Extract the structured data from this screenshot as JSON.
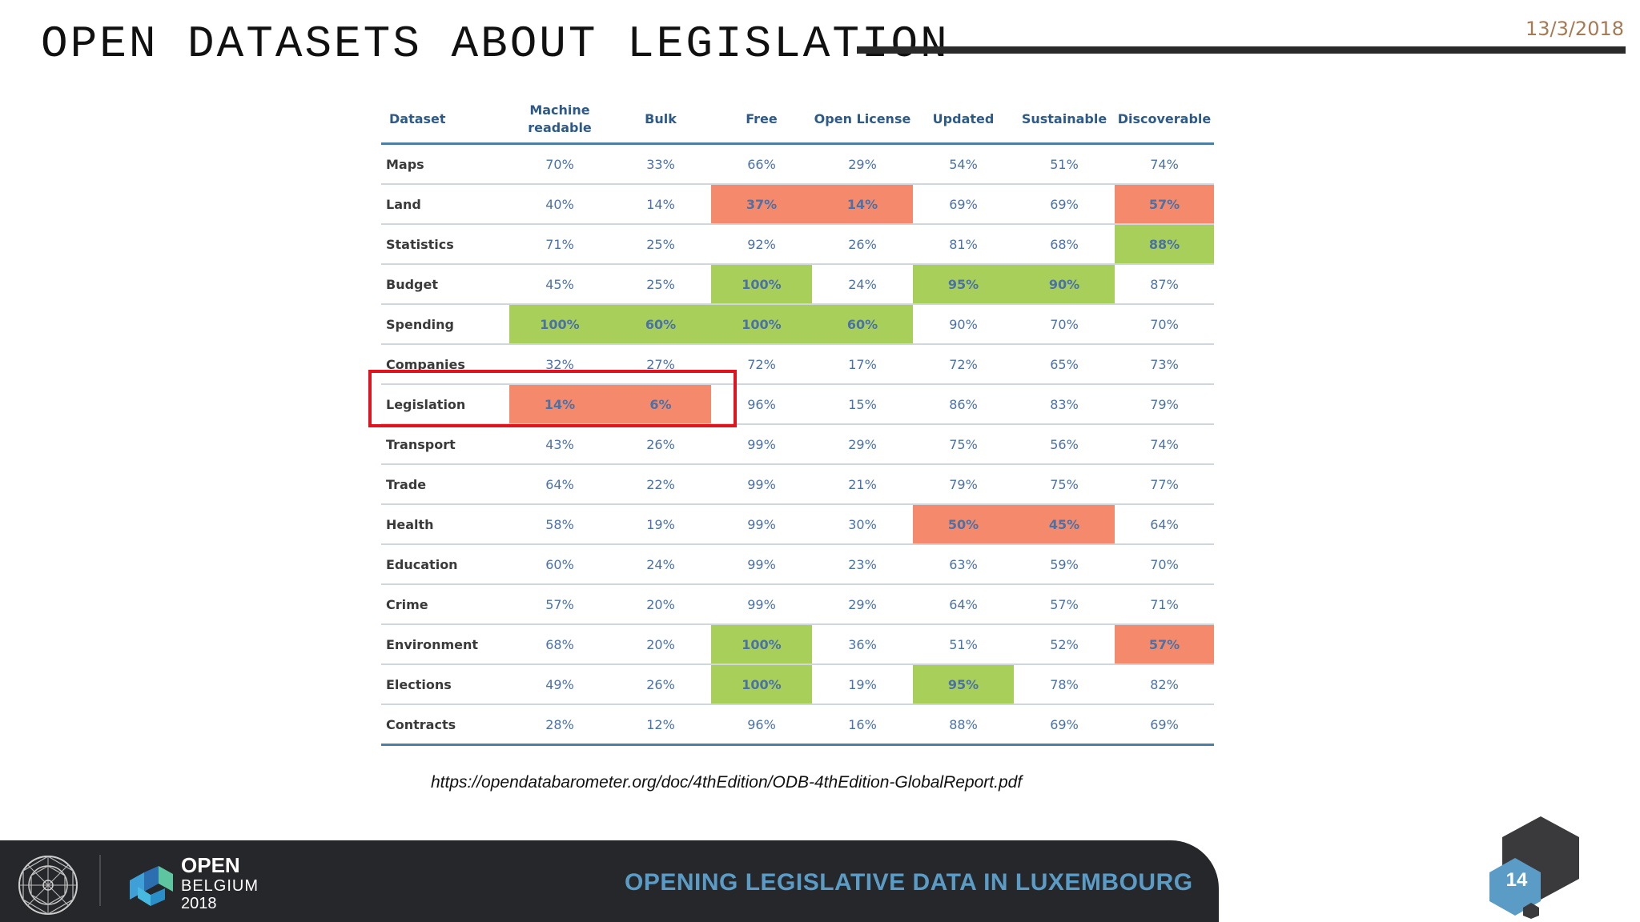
{
  "slide": {
    "title": "OPEN DATASETS ABOUT LEGISLATION",
    "date": "13/3/2018",
    "source_url": "https://opendatabarometer.org/doc/4thEdition/ODB-4thEdition-GlobalReport.pdf",
    "page_number": "14"
  },
  "table": {
    "columns": [
      "Dataset",
      "Machine readable",
      "Bulk",
      "Free",
      "Open License",
      "Updated",
      "Sustainable",
      "Discoverable"
    ],
    "rows": [
      {
        "label": "Maps",
        "cells": [
          {
            "v": "70%"
          },
          {
            "v": "33%"
          },
          {
            "v": "66%"
          },
          {
            "v": "29%"
          },
          {
            "v": "54%"
          },
          {
            "v": "51%"
          },
          {
            "v": "74%"
          }
        ]
      },
      {
        "label": "Land",
        "cells": [
          {
            "v": "40%"
          },
          {
            "v": "14%"
          },
          {
            "v": "37%",
            "h": "red"
          },
          {
            "v": "14%",
            "h": "red"
          },
          {
            "v": "69%"
          },
          {
            "v": "69%"
          },
          {
            "v": "57%",
            "h": "red"
          }
        ]
      },
      {
        "label": "Statistics",
        "cells": [
          {
            "v": "71%"
          },
          {
            "v": "25%"
          },
          {
            "v": "92%"
          },
          {
            "v": "26%"
          },
          {
            "v": "81%"
          },
          {
            "v": "68%"
          },
          {
            "v": "88%",
            "h": "green"
          }
        ]
      },
      {
        "label": "Budget",
        "cells": [
          {
            "v": "45%"
          },
          {
            "v": "25%"
          },
          {
            "v": "100%",
            "h": "green"
          },
          {
            "v": "24%"
          },
          {
            "v": "95%",
            "h": "green"
          },
          {
            "v": "90%",
            "h": "green"
          },
          {
            "v": "87%"
          }
        ]
      },
      {
        "label": "Spending",
        "cells": [
          {
            "v": "100%",
            "h": "green"
          },
          {
            "v": "60%",
            "h": "green"
          },
          {
            "v": "100%",
            "h": "green"
          },
          {
            "v": "60%",
            "h": "green"
          },
          {
            "v": "90%"
          },
          {
            "v": "70%"
          },
          {
            "v": "70%"
          }
        ]
      },
      {
        "label": "Companies",
        "cells": [
          {
            "v": "32%"
          },
          {
            "v": "27%"
          },
          {
            "v": "72%"
          },
          {
            "v": "17%"
          },
          {
            "v": "72%"
          },
          {
            "v": "65%"
          },
          {
            "v": "73%"
          }
        ]
      },
      {
        "label": "Legislation",
        "cells": [
          {
            "v": "14%",
            "h": "red"
          },
          {
            "v": "6%",
            "h": "red"
          },
          {
            "v": "96%"
          },
          {
            "v": "15%"
          },
          {
            "v": "86%"
          },
          {
            "v": "83%"
          },
          {
            "v": "79%"
          }
        ]
      },
      {
        "label": "Transport",
        "cells": [
          {
            "v": "43%"
          },
          {
            "v": "26%"
          },
          {
            "v": "99%"
          },
          {
            "v": "29%"
          },
          {
            "v": "75%"
          },
          {
            "v": "56%"
          },
          {
            "v": "74%"
          }
        ]
      },
      {
        "label": "Trade",
        "cells": [
          {
            "v": "64%"
          },
          {
            "v": "22%"
          },
          {
            "v": "99%"
          },
          {
            "v": "21%"
          },
          {
            "v": "79%"
          },
          {
            "v": "75%"
          },
          {
            "v": "77%"
          }
        ]
      },
      {
        "label": "Health",
        "cells": [
          {
            "v": "58%"
          },
          {
            "v": "19%"
          },
          {
            "v": "99%"
          },
          {
            "v": "30%"
          },
          {
            "v": "50%",
            "h": "red"
          },
          {
            "v": "45%",
            "h": "red"
          },
          {
            "v": "64%"
          }
        ]
      },
      {
        "label": "Education",
        "cells": [
          {
            "v": "60%"
          },
          {
            "v": "24%"
          },
          {
            "v": "99%"
          },
          {
            "v": "23%"
          },
          {
            "v": "63%"
          },
          {
            "v": "59%"
          },
          {
            "v": "70%"
          }
        ]
      },
      {
        "label": "Crime",
        "cells": [
          {
            "v": "57%"
          },
          {
            "v": "20%"
          },
          {
            "v": "99%"
          },
          {
            "v": "29%"
          },
          {
            "v": "64%"
          },
          {
            "v": "57%"
          },
          {
            "v": "71%"
          }
        ]
      },
      {
        "label": "Environment",
        "cells": [
          {
            "v": "68%"
          },
          {
            "v": "20%"
          },
          {
            "v": "100%",
            "h": "green"
          },
          {
            "v": "36%"
          },
          {
            "v": "51%"
          },
          {
            "v": "52%"
          },
          {
            "v": "57%",
            "h": "red"
          }
        ]
      },
      {
        "label": "Elections",
        "cells": [
          {
            "v": "49%"
          },
          {
            "v": "26%"
          },
          {
            "v": "100%",
            "h": "green"
          },
          {
            "v": "19%"
          },
          {
            "v": "95%",
            "h": "green"
          },
          {
            "v": "78%"
          },
          {
            "v": "82%"
          }
        ]
      },
      {
        "label": "Contracts",
        "cells": [
          {
            "v": "28%"
          },
          {
            "v": "12%"
          },
          {
            "v": "96%"
          },
          {
            "v": "16%"
          },
          {
            "v": "88%"
          },
          {
            "v": "69%"
          },
          {
            "v": "69%"
          }
        ]
      }
    ]
  },
  "footer": {
    "title": "OPENING LEGISLATIVE DATA IN LUXEMBOURG",
    "logo_line1": "OPEN",
    "logo_line2": "BELGIUM",
    "logo_line3": "2018"
  },
  "colors": {
    "highlight_red": "#f4896b",
    "highlight_green": "#a8cf5a",
    "header_blue": "#2e5a88",
    "footer_bg": "#26272b",
    "footer_title": "#5b9cc7",
    "box_red": "#e0141e"
  },
  "icons": {
    "emblem": "circular-geometric-emblem-icon",
    "event_logo": "open-belgium-cube-logo-icon",
    "page_badge": "hexagon-page-badge-icon"
  }
}
